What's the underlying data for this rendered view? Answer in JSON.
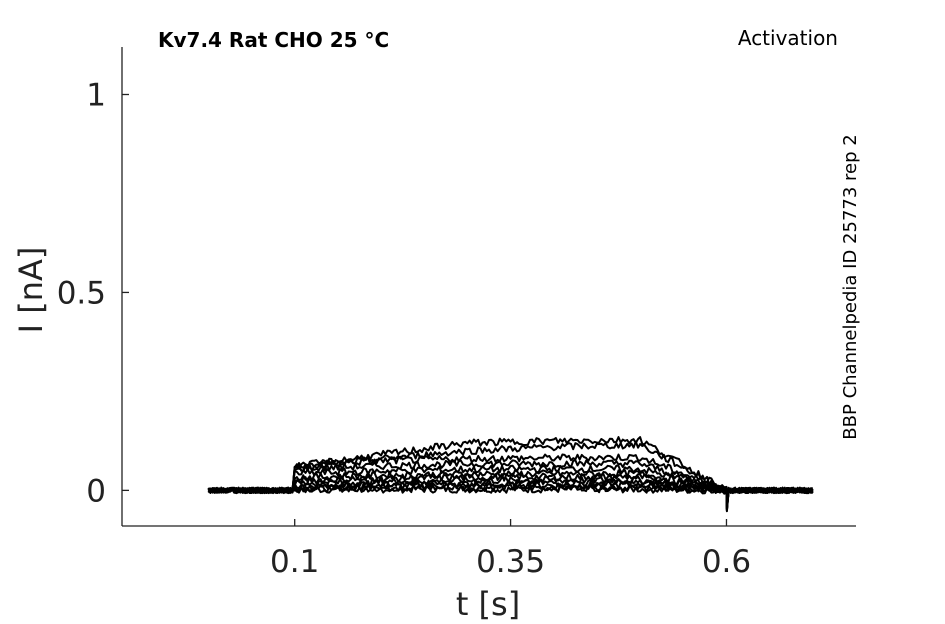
{
  "chart_data": {
    "type": "line",
    "title": "Kv7.4  Rat  CHO  25 °C",
    "protocol": "Activation",
    "side_label": "BBP Channelpedia ID 25773 rep 2",
    "xlabel": "t [s]",
    "ylabel": "I [nA]",
    "xlim": [
      -0.1,
      0.75
    ],
    "ylim": [
      -0.09,
      1.12
    ],
    "xticks": [
      0.1,
      0.35,
      0.6
    ],
    "xtick_labels": [
      "0.1",
      "0.35",
      "0.6"
    ],
    "yticks": [
      0,
      0.5,
      1
    ],
    "ytick_labels": [
      "0",
      "0.5",
      "1"
    ],
    "grid": false,
    "stimulus": {
      "t_start": 0.0,
      "t_on": 0.1,
      "t_off": 0.6,
      "t_end": 0.7
    },
    "series": [
      {
        "values": [
          0.0,
          0.002,
          0.003,
          0.003,
          0.003,
          0.003,
          0.0
        ]
      },
      {
        "values": [
          0.0,
          0.004,
          0.006,
          0.007,
          0.007,
          0.007,
          0.0
        ]
      },
      {
        "values": [
          0.0,
          0.008,
          0.011,
          0.012,
          0.013,
          0.013,
          0.0
        ]
      },
      {
        "values": [
          0.0,
          0.012,
          0.016,
          0.018,
          0.019,
          0.019,
          0.0
        ]
      },
      {
        "values": [
          0.0,
          0.018,
          0.022,
          0.025,
          0.026,
          0.026,
          0.0
        ]
      },
      {
        "values": [
          0.0,
          0.025,
          0.03,
          0.033,
          0.034,
          0.034,
          0.0
        ]
      },
      {
        "values": [
          0.0,
          0.033,
          0.038,
          0.041,
          0.042,
          0.042,
          0.0
        ]
      },
      {
        "values": [
          0.0,
          0.043,
          0.049,
          0.053,
          0.054,
          0.054,
          0.0
        ]
      },
      {
        "values": [
          0.0,
          0.055,
          0.062,
          0.067,
          0.068,
          0.068,
          0.0
        ]
      },
      {
        "values": [
          0.0,
          0.062,
          0.075,
          0.08,
          0.082,
          0.084,
          0.0
        ]
      },
      {
        "values": [
          0.0,
          0.055,
          0.08,
          0.1,
          0.11,
          0.115,
          0.0
        ]
      },
      {
        "values": [
          0.0,
          0.06,
          0.09,
          0.12,
          0.125,
          0.128,
          0.0
        ]
      }
    ],
    "series_time_points": [
      0.0,
      0.1,
      0.2,
      0.3,
      0.4,
      0.5,
      0.6
    ],
    "colors": {
      "trace": "#000000",
      "axis": "#222222"
    }
  }
}
